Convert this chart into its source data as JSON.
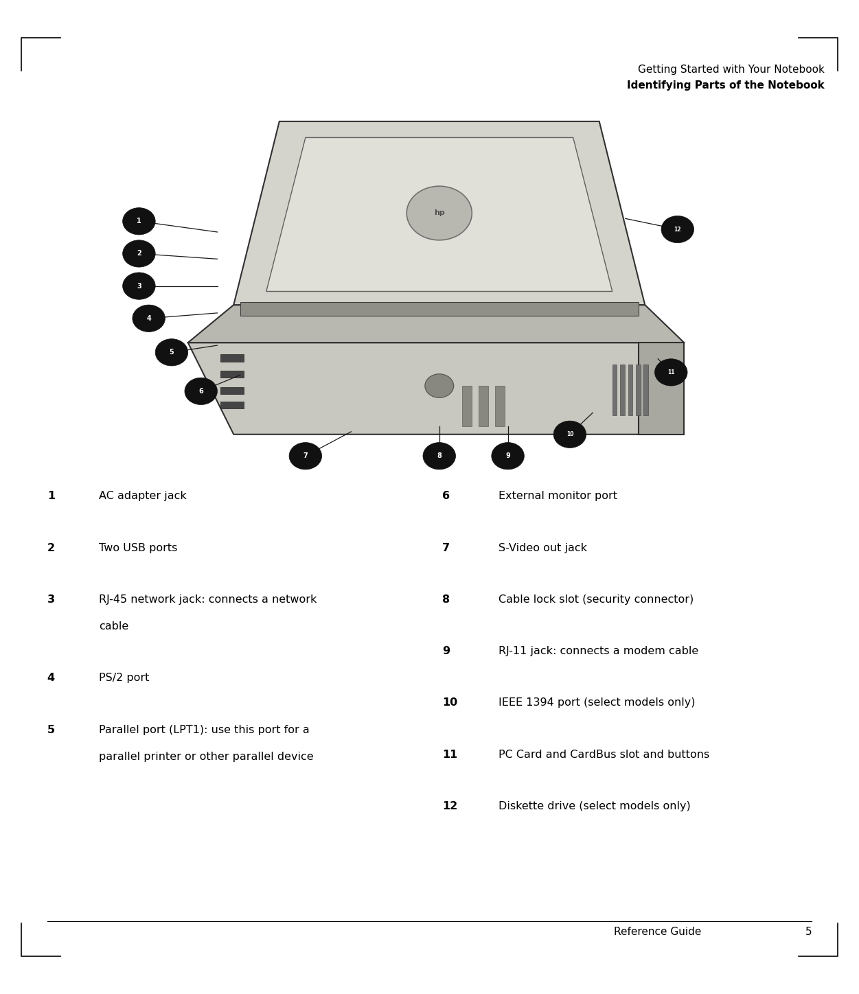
{
  "title_line1": "Getting Started with Your Notebook",
  "title_line2": "Identifying Parts of the Notebook",
  "items_left": [
    {
      "num": "1",
      "text": "AC adapter jack"
    },
    {
      "num": "2",
      "text": "Two USB ports"
    },
    {
      "num": "3",
      "text": "RJ-45 network jack: connects a network\ncable"
    },
    {
      "num": "4",
      "text": "PS/2 port"
    },
    {
      "num": "5",
      "text": "Parallel port (LPT1): use this port for a\nparallel printer or other parallel device"
    }
  ],
  "items_right": [
    {
      "num": "6",
      "text": "External monitor port"
    },
    {
      "num": "7",
      "text": "S-Video out jack"
    },
    {
      "num": "8",
      "text": "Cable lock slot (security connector)"
    },
    {
      "num": "9",
      "text": "RJ-11 jack: connects a modem cable"
    },
    {
      "num": "10",
      "text": "IEEE 1394 port (select models only)"
    },
    {
      "num": "11",
      "text": "PC Card and CardBus slot and buttons"
    },
    {
      "num": "12",
      "text": "Diskette drive (select models only)"
    }
  ],
  "footer_text": "Reference Guide",
  "footer_page": "5",
  "bg_color": "#ffffff",
  "text_color": "#000000",
  "fig_width": 12.51,
  "fig_height": 14.48,
  "dpi": 100
}
